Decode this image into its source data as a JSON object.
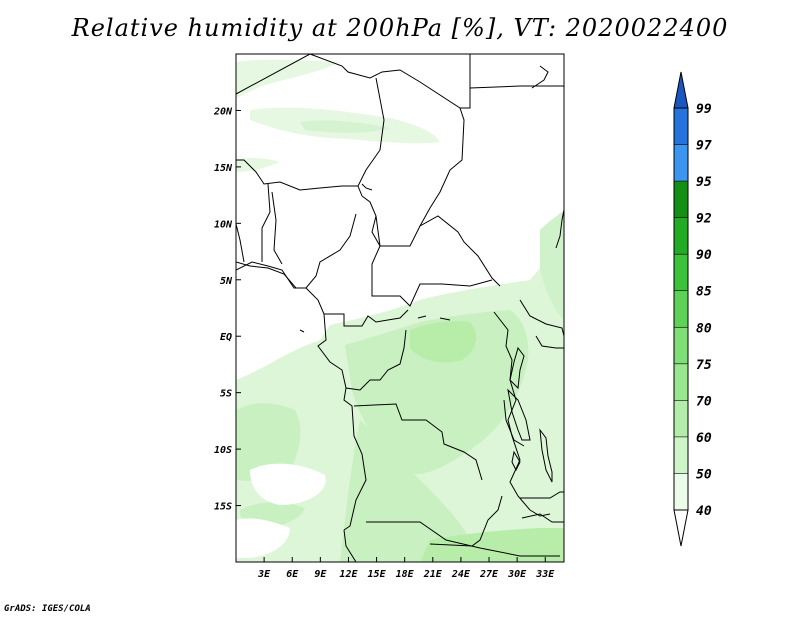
{
  "title": "Relative humidity at 200hPa [%], VT: 2020022400",
  "credit": "GrADS: IGES/COLA",
  "map": {
    "lon_range": [
      0,
      35
    ],
    "lat_range": [
      -20,
      25
    ],
    "lat_labels": [
      {
        "lat": 20,
        "text": "20N"
      },
      {
        "lat": 15,
        "text": "15N"
      },
      {
        "lat": 10,
        "text": "10N"
      },
      {
        "lat": 5,
        "text": "5N"
      },
      {
        "lat": 0,
        "text": "EQ"
      },
      {
        "lat": -5,
        "text": "5S"
      },
      {
        "lat": -10,
        "text": "10S"
      },
      {
        "lat": -15,
        "text": "15S"
      }
    ],
    "lon_labels": [
      {
        "lon": 3,
        "text": "3E"
      },
      {
        "lon": 6,
        "text": "6E"
      },
      {
        "lon": 9,
        "text": "9E"
      },
      {
        "lon": 12,
        "text": "12E"
      },
      {
        "lon": 15,
        "text": "15E"
      },
      {
        "lon": 18,
        "text": "18E"
      },
      {
        "lon": 21,
        "text": "21E"
      },
      {
        "lon": 24,
        "text": "24E"
      },
      {
        "lon": 27,
        "text": "27E"
      },
      {
        "lon": 30,
        "text": "30E"
      },
      {
        "lon": 33,
        "text": "33E"
      }
    ]
  },
  "colorbar": {
    "levels": [
      "40",
      "50",
      "60",
      "70",
      "75",
      "80",
      "85",
      "90",
      "92",
      "95",
      "97",
      "99"
    ],
    "colors": [
      "#ecfcea",
      "#cef5c8",
      "#b2eeaa",
      "#98e68e",
      "#7fde75",
      "#5ed257",
      "#3cc23a",
      "#24ab24",
      "#138f13",
      "#3c96ef",
      "#2673dd",
      "#1a56c1"
    ],
    "under_color": "#ffffff",
    "over_color": "#1a56c1"
  },
  "colors": {
    "humid_light": "#e3f7df",
    "humid_mid": "#c9f0c3",
    "humid_strong": "#b4ebab",
    "outline": "#000000"
  }
}
